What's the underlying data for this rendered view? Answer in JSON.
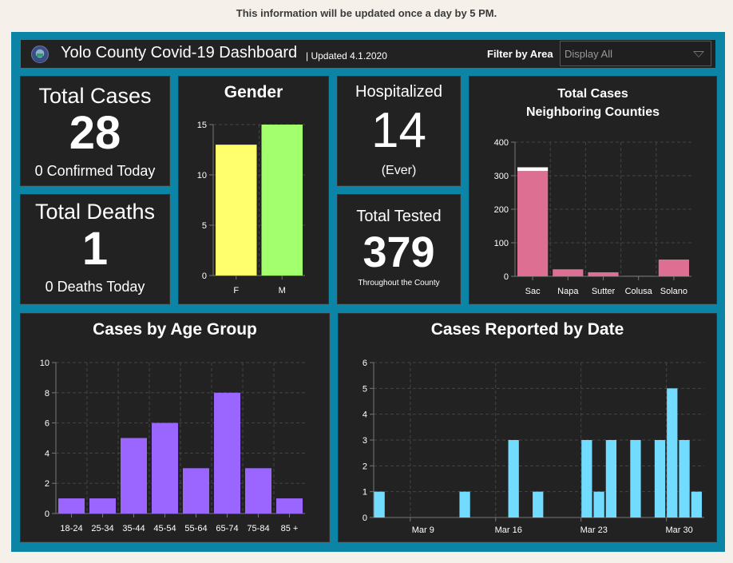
{
  "notice": "This information will be updated once a day by 5 PM.",
  "header": {
    "title": "Yolo County Covid-19 Dashboard",
    "updated": "| Updated 4.1.2020",
    "filter_label": "Filter by Area",
    "filter_value": "Display All"
  },
  "indicators": {
    "total_cases": {
      "title": "Total Cases",
      "value": "28",
      "sub": "0 Confirmed Today"
    },
    "total_deaths": {
      "title": "Total Deaths",
      "value": "1",
      "sub": "0 Deaths Today"
    },
    "hospitalized": {
      "title": "Hospitalized",
      "value": "14",
      "sub": "(Ever)"
    },
    "total_tested": {
      "title": "Total Tested",
      "value": "379",
      "sub": "Throughout the County"
    }
  },
  "colors": {
    "frame": "#0b84a5",
    "panel": "#222222",
    "gender_f": "#ffff6e",
    "gender_m": "#a3ff6e",
    "counties": "#dd7092",
    "counties_deaths": "#ffffff",
    "age": "#9b66ff",
    "date": "#71dcff"
  },
  "chart_data": [
    {
      "id": "gender",
      "type": "bar",
      "title": "Gender",
      "categories": [
        "F",
        "M"
      ],
      "values": [
        13,
        15
      ],
      "ylim": [
        0,
        15
      ],
      "yticks": [
        0,
        5,
        10,
        15
      ],
      "grid": true
    },
    {
      "id": "counties",
      "type": "bar",
      "stacked": true,
      "title": "Total Cases\nNeighboring Counties",
      "title_lines": [
        "Total Cases",
        "Neighboring Counties"
      ],
      "categories": [
        "Sac",
        "Napa",
        "Sutter",
        "Colusa",
        "Solano"
      ],
      "series": [
        {
          "name": "Cases",
          "values": [
            314,
            19,
            12,
            1,
            50
          ]
        },
        {
          "name": "Deaths",
          "values": [
            11,
            1,
            0,
            0,
            0
          ]
        }
      ],
      "ylim": [
        0,
        400
      ],
      "yticks": [
        0,
        100,
        200,
        300,
        400
      ],
      "grid": true
    },
    {
      "id": "age",
      "type": "bar",
      "title": "Cases by Age Group",
      "categories": [
        "18-24",
        "25-34",
        "35-44",
        "45-54",
        "55-64",
        "65-74",
        "75-84",
        "85 +"
      ],
      "values": [
        1,
        1,
        5,
        6,
        3,
        8,
        3,
        1
      ],
      "ylim": [
        0,
        10
      ],
      "yticks": [
        0,
        2,
        4,
        6,
        8,
        10
      ],
      "grid": true
    },
    {
      "id": "date",
      "type": "bar",
      "title": "Cases Reported by Date",
      "x": [
        "Mar 6",
        "Mar 13",
        "Mar 17",
        "Mar 19",
        "Mar 23",
        "Mar 24",
        "Mar 25",
        "Mar 27",
        "Mar 29",
        "Mar 30",
        "Mar 31",
        "Apr 1"
      ],
      "x_day_offsets": [
        6,
        13,
        17,
        19,
        23,
        24,
        25,
        27,
        29,
        30,
        31,
        32
      ],
      "values": [
        1,
        1,
        3,
        1,
        3,
        1,
        3,
        3,
        3,
        5,
        3,
        1
      ],
      "xticks": [
        "Mar 9",
        "Mar 16",
        "Mar 23",
        "Mar 30"
      ],
      "xtick_days": [
        9,
        16,
        23,
        30
      ],
      "xrange_days": [
        6,
        33
      ],
      "ylim": [
        0,
        6
      ],
      "yticks": [
        0,
        1,
        2,
        3,
        4,
        5,
        6
      ],
      "grid": true
    }
  ]
}
